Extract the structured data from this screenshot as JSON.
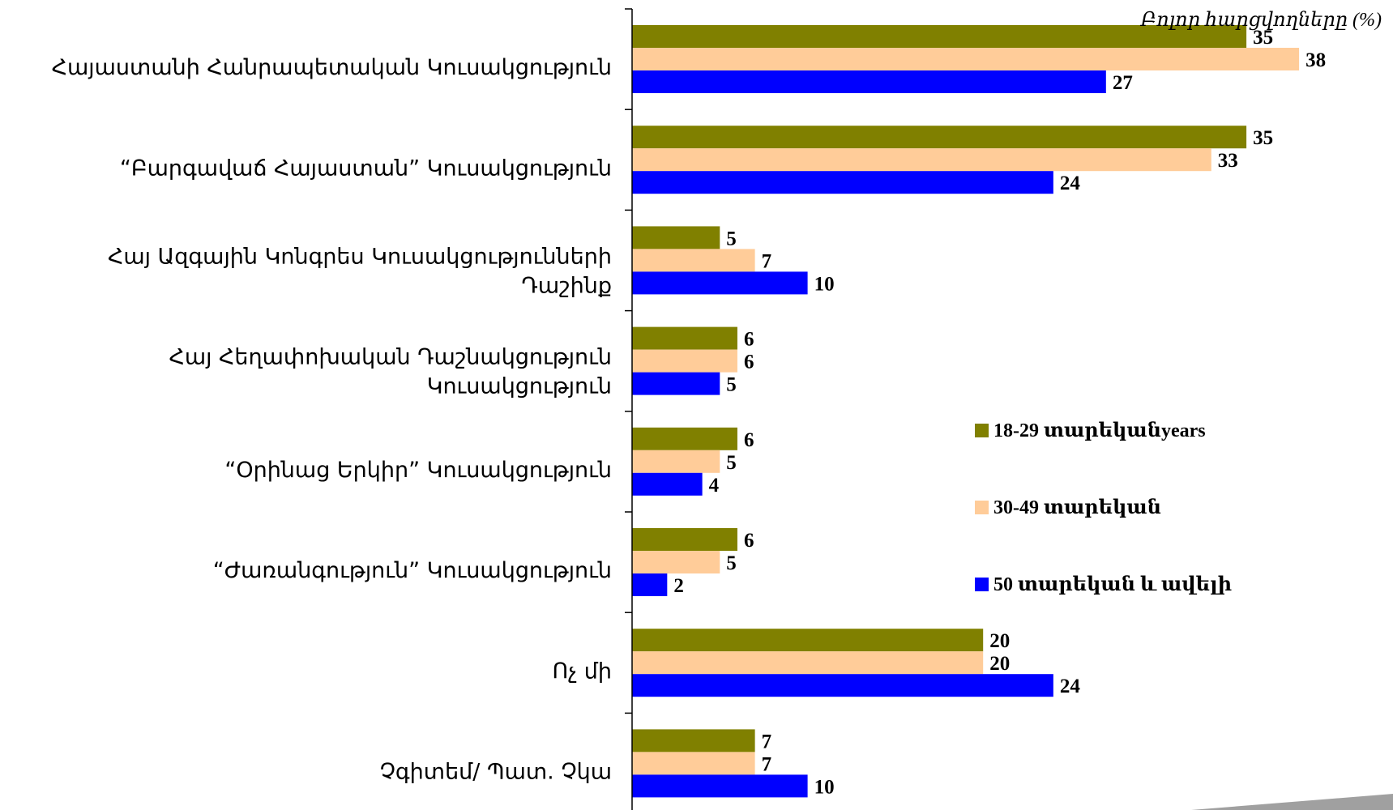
{
  "chart_data": {
    "type": "bar",
    "orientation": "horizontal",
    "note": "Բոլոր հարցվողները (%)",
    "categories": [
      [
        "Հայաստանի Հանրապետական Կուսակցություն"
      ],
      [
        "“Բարգավաճ Հայաստան” Կուսակցություն"
      ],
      [
        "Հայ Ազգային Կոնգրես Կուսակցությունների",
        "Դաշինք"
      ],
      [
        "Հայ Հեղափոխական Դաշնակցություն",
        "Կուսակցություն"
      ],
      [
        "“Օրինաց Երկիր” Կուսակցություն"
      ],
      [
        "“Ժառանգություն” Կուսակցություն"
      ],
      [
        "Ոչ մի"
      ],
      [
        "Չգիտեմ/ Պատ. Չկա"
      ]
    ],
    "series": [
      {
        "name": "18-29 տարեկանyears",
        "color": "#808000",
        "values": [
          35,
          35,
          5,
          6,
          6,
          6,
          20,
          7
        ]
      },
      {
        "name": "30-49 տարեկան",
        "color": "#FFCC99",
        "values": [
          38,
          33,
          7,
          6,
          5,
          5,
          20,
          7
        ]
      },
      {
        "name": "50 տարեկան և ավելի",
        "color": "#0000FF",
        "values": [
          27,
          24,
          10,
          5,
          4,
          2,
          24,
          10
        ]
      }
    ],
    "xlim": [
      0,
      40
    ],
    "legend_position": "right",
    "grid": false
  }
}
